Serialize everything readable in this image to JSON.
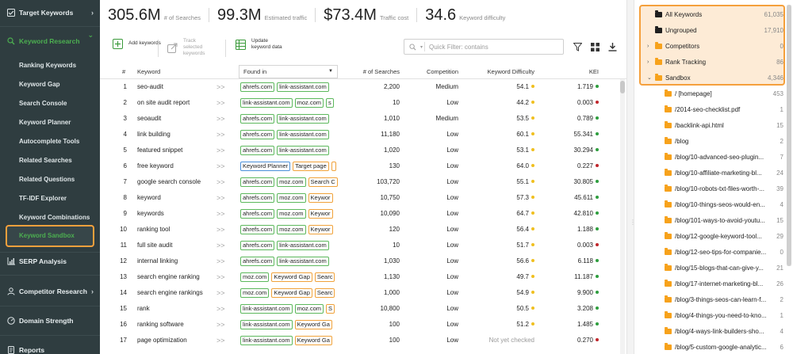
{
  "sidebar": {
    "sections": [
      {
        "label": "Target Keywords",
        "icon": "checkbox-icon",
        "chevron": "›"
      },
      {
        "label": "Keyword Research",
        "icon": "search-icon",
        "chevron": "⌄"
      },
      {
        "label": "SERP Analysis",
        "icon": "bar-chart-icon"
      },
      {
        "label": "Competitor Research",
        "icon": "user-icon",
        "chevron": "›"
      },
      {
        "label": "Domain Strength",
        "icon": "gauge-icon"
      },
      {
        "label": "Reports",
        "icon": "report-icon"
      }
    ],
    "research_items": [
      "Ranking Keywords",
      "Keyword Gap",
      "Search Console",
      "Keyword Planner",
      "Autocomplete Tools",
      "Related Searches",
      "Related Questions",
      "TF-IDF Explorer",
      "Keyword Combinations"
    ],
    "active_item": "Keyword Sandbox"
  },
  "stats": [
    {
      "value": "305.6M",
      "label": "# of Searches"
    },
    {
      "value": "99.3M",
      "label": "Estimated traffic"
    },
    {
      "value": "$73.4M",
      "label": "Traffic cost"
    },
    {
      "value": "34.6",
      "label": "Keyword difficulty"
    }
  ],
  "toolbar": {
    "add_label": "Add keywords",
    "track_label": "Track selected keywords",
    "update_label": "Update keyword data",
    "filter_placeholder": "Quick Filter: contains"
  },
  "table": {
    "headers": {
      "num": "#",
      "keyword": "Keyword",
      "found_in": "Found in",
      "searches": "# of Searches",
      "competition": "Competition",
      "difficulty": "Keyword Difficulty",
      "kei": "KEI"
    },
    "rows": [
      {
        "num": "1",
        "keyword": "seo-audit",
        "arrow": ">>",
        "tags": [
          {
            "t": "ahrefs.com",
            "c": "green"
          },
          {
            "t": "link-assistant.com",
            "c": "green"
          }
        ],
        "searches": "2,200",
        "competition": "Medium",
        "difficulty": "54.1",
        "diff_dot": "y",
        "kei": "1.719",
        "kei_dot": "g"
      },
      {
        "num": "2",
        "keyword": "on site audit report",
        "arrow": ">>",
        "tags": [
          {
            "t": "link-assistant.com",
            "c": "green"
          },
          {
            "t": "moz.com",
            "c": "green"
          },
          {
            "t": "s",
            "c": "green"
          }
        ],
        "searches": "10",
        "competition": "Low",
        "difficulty": "44.2",
        "diff_dot": "y",
        "kei": "0.003",
        "kei_dot": "r"
      },
      {
        "num": "3",
        "keyword": "seoaudit",
        "arrow": ">>",
        "tags": [
          {
            "t": "ahrefs.com",
            "c": "green"
          },
          {
            "t": "link-assistant.com",
            "c": "green"
          }
        ],
        "searches": "1,010",
        "competition": "Medium",
        "difficulty": "53.5",
        "diff_dot": "y",
        "kei": "0.789",
        "kei_dot": "g"
      },
      {
        "num": "4",
        "keyword": "link building",
        "arrow": ">>",
        "tags": [
          {
            "t": "ahrefs.com",
            "c": "green"
          },
          {
            "t": "link-assistant.com",
            "c": "green"
          }
        ],
        "searches": "11,180",
        "competition": "Low",
        "difficulty": "60.1",
        "diff_dot": "y",
        "kei": "55.341",
        "kei_dot": "g"
      },
      {
        "num": "5",
        "keyword": "featured snippet",
        "arrow": ">>",
        "tags": [
          {
            "t": "ahrefs.com",
            "c": "green"
          },
          {
            "t": "link-assistant.com",
            "c": "green"
          }
        ],
        "searches": "1,020",
        "competition": "Low",
        "difficulty": "53.1",
        "diff_dot": "y",
        "kei": "30.294",
        "kei_dot": "g"
      },
      {
        "num": "6",
        "keyword": "free keyword",
        "arrow": ">>",
        "tags": [
          {
            "t": "Keyword Planner",
            "c": "blue"
          },
          {
            "t": "Target page",
            "c": "orange"
          },
          {
            "t": "",
            "c": "orange"
          }
        ],
        "searches": "130",
        "competition": "Low",
        "difficulty": "64.0",
        "diff_dot": "y",
        "kei": "0.227",
        "kei_dot": "r"
      },
      {
        "num": "7",
        "keyword": "google search console",
        "arrow": ">>",
        "tags": [
          {
            "t": "ahrefs.com",
            "c": "green"
          },
          {
            "t": "moz.com",
            "c": "green"
          },
          {
            "t": "Search C",
            "c": "orange"
          }
        ],
        "searches": "103,720",
        "competition": "Low",
        "difficulty": "55.1",
        "diff_dot": "y",
        "kei": "30.805",
        "kei_dot": "g"
      },
      {
        "num": "8",
        "keyword": "keyword",
        "arrow": ">>",
        "tags": [
          {
            "t": "ahrefs.com",
            "c": "green"
          },
          {
            "t": "moz.com",
            "c": "green"
          },
          {
            "t": "Keywor",
            "c": "orange"
          }
        ],
        "searches": "10,750",
        "competition": "Low",
        "difficulty": "57.3",
        "diff_dot": "y",
        "kei": "45.611",
        "kei_dot": "g"
      },
      {
        "num": "9",
        "keyword": "keywords",
        "arrow": ">>",
        "tags": [
          {
            "t": "ahrefs.com",
            "c": "green"
          },
          {
            "t": "moz.com",
            "c": "green"
          },
          {
            "t": "Keywor",
            "c": "orange"
          }
        ],
        "searches": "10,090",
        "competition": "Low",
        "difficulty": "64.7",
        "diff_dot": "y",
        "kei": "42.810",
        "kei_dot": "g"
      },
      {
        "num": "10",
        "keyword": "ranking tool",
        "arrow": ">>",
        "tags": [
          {
            "t": "ahrefs.com",
            "c": "green"
          },
          {
            "t": "moz.com",
            "c": "green"
          },
          {
            "t": "Keywor",
            "c": "orange"
          }
        ],
        "searches": "120",
        "competition": "Low",
        "difficulty": "56.4",
        "diff_dot": "y",
        "kei": "1.188",
        "kei_dot": "g"
      },
      {
        "num": "11",
        "keyword": "full site audit",
        "arrow": ">>",
        "tags": [
          {
            "t": "ahrefs.com",
            "c": "green"
          },
          {
            "t": "link-assistant.com",
            "c": "green"
          }
        ],
        "searches": "10",
        "competition": "Low",
        "difficulty": "51.7",
        "diff_dot": "y",
        "kei": "0.003",
        "kei_dot": "r"
      },
      {
        "num": "12",
        "keyword": "internal linking",
        "arrow": ">>",
        "tags": [
          {
            "t": "ahrefs.com",
            "c": "green"
          },
          {
            "t": "link-assistant.com",
            "c": "green"
          }
        ],
        "searches": "1,030",
        "competition": "Low",
        "difficulty": "56.6",
        "diff_dot": "y",
        "kei": "6.118",
        "kei_dot": "g"
      },
      {
        "num": "13",
        "keyword": "search engine ranking",
        "arrow": ">>",
        "tags": [
          {
            "t": "moz.com",
            "c": "green"
          },
          {
            "t": "Keyword Gap",
            "c": "orange"
          },
          {
            "t": "Searc",
            "c": "orange"
          }
        ],
        "searches": "1,130",
        "competition": "Low",
        "difficulty": "49.7",
        "diff_dot": "y",
        "kei": "11.187",
        "kei_dot": "g"
      },
      {
        "num": "14",
        "keyword": "search engine rankings",
        "arrow": ">>",
        "tags": [
          {
            "t": "moz.com",
            "c": "green"
          },
          {
            "t": "Keyword Gap",
            "c": "orange"
          },
          {
            "t": "Searc",
            "c": "orange"
          }
        ],
        "searches": "1,000",
        "competition": "Low",
        "difficulty": "54.9",
        "diff_dot": "y",
        "kei": "9.900",
        "kei_dot": "g"
      },
      {
        "num": "15",
        "keyword": "rank",
        "arrow": ">>",
        "tags": [
          {
            "t": "link-assistant.com",
            "c": "green"
          },
          {
            "t": "moz.com",
            "c": "green"
          },
          {
            "t": "S",
            "c": "orange"
          }
        ],
        "searches": "10,800",
        "competition": "Low",
        "difficulty": "50.5",
        "diff_dot": "y",
        "kei": "3.208",
        "kei_dot": "g"
      },
      {
        "num": "16",
        "keyword": "ranking software",
        "arrow": ">>",
        "tags": [
          {
            "t": "link-assistant.com",
            "c": "green"
          },
          {
            "t": "Keyword Ga",
            "c": "orange"
          }
        ],
        "searches": "100",
        "competition": "Low",
        "difficulty": "51.2",
        "diff_dot": "y",
        "kei": "1.485",
        "kei_dot": "g"
      },
      {
        "num": "17",
        "keyword": "page optimization",
        "arrow": ">>",
        "tags": [
          {
            "t": "link-assistant.com",
            "c": "green"
          },
          {
            "t": "Keyword Ga",
            "c": "orange"
          }
        ],
        "searches": "100",
        "competition": "Low",
        "difficulty": "Not yet checked",
        "diff_dot": "",
        "kei": "0.270",
        "kei_dot": "r"
      }
    ]
  },
  "tree": {
    "top": [
      {
        "name": "All Keywords",
        "count": "61,035",
        "icon": "dark",
        "arrow": ""
      },
      {
        "name": "Ungrouped",
        "count": "17,910",
        "icon": "dark",
        "arrow": ""
      },
      {
        "name": "Competitors",
        "count": "0",
        "icon": "orange",
        "arrow": "›"
      },
      {
        "name": "Rank Tracking",
        "count": "86",
        "icon": "orange",
        "arrow": "›"
      },
      {
        "name": "Sandbox",
        "count": "4,346",
        "icon": "orange",
        "arrow": "⌄"
      }
    ],
    "children": [
      {
        "name": "/ [homepage]",
        "count": "453"
      },
      {
        "name": "/2014-seo-checklist.pdf",
        "count": "1"
      },
      {
        "name": "/backlink-api.html",
        "count": "15"
      },
      {
        "name": "/blog",
        "count": "2"
      },
      {
        "name": "/blog/10-advanced-seo-plugin...",
        "count": "7"
      },
      {
        "name": "/blog/10-affiliate-marketing-bl...",
        "count": "24"
      },
      {
        "name": "/blog/10-robots-txt-files-worth-...",
        "count": "39"
      },
      {
        "name": "/blog/10-things-seos-would-en...",
        "count": "4"
      },
      {
        "name": "/blog/101-ways-to-avoid-youtu...",
        "count": "15"
      },
      {
        "name": "/blog/12-google-keyword-tool...",
        "count": "29"
      },
      {
        "name": "/blog/12-seo-tips-for-companie...",
        "count": "0"
      },
      {
        "name": "/blog/15-blogs-that-can-give-y...",
        "count": "21"
      },
      {
        "name": "/blog/17-internet-marketing-bl...",
        "count": "26"
      },
      {
        "name": "/blog/3-things-seos-can-learn-f...",
        "count": "2"
      },
      {
        "name": "/blog/4-things-you-need-to-kno...",
        "count": "1"
      },
      {
        "name": "/blog/4-ways-link-builders-sho...",
        "count": "4"
      },
      {
        "name": "/blog/5-custom-google-analytic...",
        "count": "6"
      }
    ]
  },
  "colors": {
    "sidebar_bg": "#2f3d40",
    "accent_green": "#4caf50",
    "highlight_orange": "#f5a03c",
    "folder_orange": "#f7a21b"
  }
}
